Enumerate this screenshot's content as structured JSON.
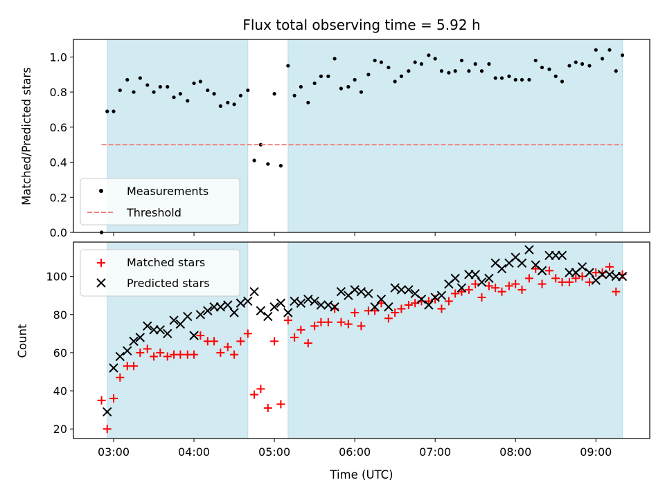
{
  "chart_data": {
    "title": "Flux total observing time = 5.92 h",
    "xlabel": "Time (UTC)",
    "x_ticks": [
      "03:00",
      "04:00",
      "05:00",
      "06:00",
      "07:00",
      "08:00",
      "09:00"
    ],
    "x_unit": "hours UTC",
    "x_range": [
      2.5,
      9.67
    ],
    "shaded_intervals": [
      [
        2.92,
        4.67
      ],
      [
        5.17,
        9.33
      ]
    ],
    "shade_color": "#add8e6",
    "panels": [
      {
        "type": "scatter",
        "ylabel": "Matched/Predicted stars",
        "ylim": [
          0,
          1.1
        ],
        "y_ticks": [
          "0.0",
          "0.2",
          "0.4",
          "0.6",
          "0.8",
          "1.0"
        ],
        "legend_position": "lower-left",
        "series": [
          {
            "name": "Measurements",
            "marker": "dot",
            "color": "#000000",
            "points": [
              [
                2.85,
                0.0
              ],
              [
                2.92,
                0.69
              ],
              [
                3.0,
                0.69
              ],
              [
                3.08,
                0.81
              ],
              [
                3.17,
                0.87
              ],
              [
                3.25,
                0.8
              ],
              [
                3.33,
                0.88
              ],
              [
                3.42,
                0.84
              ],
              [
                3.5,
                0.8
              ],
              [
                3.58,
                0.83
              ],
              [
                3.67,
                0.83
              ],
              [
                3.75,
                0.77
              ],
              [
                3.83,
                0.79
              ],
              [
                3.92,
                0.75
              ],
              [
                4.0,
                0.85
              ],
              [
                4.08,
                0.86
              ],
              [
                4.17,
                0.81
              ],
              [
                4.25,
                0.79
              ],
              [
                4.33,
                0.72
              ],
              [
                4.42,
                0.74
              ],
              [
                4.5,
                0.73
              ],
              [
                4.58,
                0.78
              ],
              [
                4.67,
                0.81
              ],
              [
                4.75,
                0.41
              ],
              [
                4.83,
                0.5
              ],
              [
                4.92,
                0.39
              ],
              [
                5.0,
                0.79
              ],
              [
                5.08,
                0.38
              ],
              [
                5.17,
                0.95
              ],
              [
                5.25,
                0.78
              ],
              [
                5.33,
                0.83
              ],
              [
                5.42,
                0.74
              ],
              [
                5.5,
                0.85
              ],
              [
                5.58,
                0.89
              ],
              [
                5.67,
                0.89
              ],
              [
                5.75,
                0.99
              ],
              [
                5.83,
                0.82
              ],
              [
                5.92,
                0.83
              ],
              [
                6.0,
                0.87
              ],
              [
                6.08,
                0.8
              ],
              [
                6.17,
                0.9
              ],
              [
                6.25,
                0.98
              ],
              [
                6.33,
                0.97
              ],
              [
                6.42,
                0.94
              ],
              [
                6.5,
                0.86
              ],
              [
                6.58,
                0.89
              ],
              [
                6.67,
                0.92
              ],
              [
                6.75,
                0.97
              ],
              [
                6.83,
                0.96
              ],
              [
                6.92,
                1.01
              ],
              [
                7.0,
                0.99
              ],
              [
                7.08,
                0.92
              ],
              [
                7.17,
                0.91
              ],
              [
                7.25,
                0.92
              ],
              [
                7.33,
                0.98
              ],
              [
                7.42,
                0.92
              ],
              [
                7.5,
                0.96
              ],
              [
                7.58,
                0.92
              ],
              [
                7.67,
                0.96
              ],
              [
                7.75,
                0.88
              ],
              [
                7.83,
                0.88
              ],
              [
                7.92,
                0.89
              ],
              [
                8.0,
                0.87
              ],
              [
                8.08,
                0.87
              ],
              [
                8.17,
                0.87
              ],
              [
                8.25,
                0.98
              ],
              [
                8.33,
                0.94
              ],
              [
                8.42,
                0.93
              ],
              [
                8.5,
                0.89
              ],
              [
                8.58,
                0.86
              ],
              [
                8.67,
                0.95
              ],
              [
                8.75,
                0.97
              ],
              [
                8.83,
                0.96
              ],
              [
                8.92,
                0.95
              ],
              [
                9.0,
                1.04
              ],
              [
                9.08,
                0.99
              ],
              [
                9.17,
                1.04
              ],
              [
                9.25,
                0.92
              ],
              [
                9.33,
                1.01
              ]
            ]
          },
          {
            "name": "Threshold",
            "marker": "dashed-line",
            "color": "#f08080",
            "x_range": [
              2.85,
              9.33
            ],
            "y": 0.5
          }
        ]
      },
      {
        "type": "scatter",
        "ylabel": "Count",
        "ylim": [
          15,
          118
        ],
        "y_ticks": [
          "20",
          "40",
          "60",
          "80",
          "100"
        ],
        "legend_position": "upper-left",
        "series": [
          {
            "name": "Matched stars",
            "marker": "plus",
            "color": "#ff0000",
            "points": [
              [
                2.85,
                35
              ],
              [
                2.92,
                20
              ],
              [
                3.0,
                36
              ],
              [
                3.08,
                47
              ],
              [
                3.17,
                53
              ],
              [
                3.25,
                53
              ],
              [
                3.33,
                60
              ],
              [
                3.42,
                62
              ],
              [
                3.5,
                58
              ],
              [
                3.58,
                60
              ],
              [
                3.67,
                58
              ],
              [
                3.75,
                59
              ],
              [
                3.83,
                59
              ],
              [
                3.92,
                59
              ],
              [
                4.0,
                59
              ],
              [
                4.08,
                69
              ],
              [
                4.17,
                66
              ],
              [
                4.25,
                66
              ],
              [
                4.33,
                60
              ],
              [
                4.42,
                63
              ],
              [
                4.5,
                59
              ],
              [
                4.58,
                66
              ],
              [
                4.67,
                70
              ],
              [
                4.75,
                38
              ],
              [
                4.83,
                41
              ],
              [
                4.92,
                31
              ],
              [
                5.0,
                66
              ],
              [
                5.08,
                33
              ],
              [
                5.17,
                77
              ],
              [
                5.25,
                68
              ],
              [
                5.33,
                72
              ],
              [
                5.42,
                65
              ],
              [
                5.5,
                74
              ],
              [
                5.58,
                76
              ],
              [
                5.67,
                76
              ],
              [
                5.75,
                83
              ],
              [
                5.83,
                76
              ],
              [
                5.92,
                75
              ],
              [
                6.0,
                81
              ],
              [
                6.08,
                74
              ],
              [
                6.17,
                82
              ],
              [
                6.25,
                82
              ],
              [
                6.33,
                86
              ],
              [
                6.42,
                78
              ],
              [
                6.5,
                81
              ],
              [
                6.58,
                83
              ],
              [
                6.67,
                85
              ],
              [
                6.75,
                86
              ],
              [
                6.83,
                87
              ],
              [
                6.92,
                87
              ],
              [
                7.0,
                88
              ],
              [
                7.08,
                83
              ],
              [
                7.17,
                87
              ],
              [
                7.25,
                91
              ],
              [
                7.33,
                92
              ],
              [
                7.42,
                93
              ],
              [
                7.5,
                96
              ],
              [
                7.58,
                89
              ],
              [
                7.67,
                95
              ],
              [
                7.75,
                94
              ],
              [
                7.83,
                92
              ],
              [
                7.92,
                95
              ],
              [
                8.0,
                96
              ],
              [
                8.08,
                93
              ],
              [
                8.17,
                99
              ],
              [
                8.25,
                104
              ],
              [
                8.33,
                96
              ],
              [
                8.42,
                103
              ],
              [
                8.5,
                99
              ],
              [
                8.58,
                97
              ],
              [
                8.67,
                97
              ],
              [
                8.75,
                99
              ],
              [
                8.83,
                100
              ],
              [
                8.92,
                97
              ],
              [
                9.0,
                102
              ],
              [
                9.08,
                102
              ],
              [
                9.17,
                105
              ],
              [
                9.25,
                92
              ],
              [
                9.33,
                101
              ]
            ]
          },
          {
            "name": "Predicted stars",
            "marker": "x",
            "color": "#000000",
            "points": [
              [
                2.92,
                29
              ],
              [
                3.0,
                52
              ],
              [
                3.08,
                58
              ],
              [
                3.17,
                61
              ],
              [
                3.25,
                66
              ],
              [
                3.33,
                68
              ],
              [
                3.42,
                74
              ],
              [
                3.5,
                72
              ],
              [
                3.58,
                72
              ],
              [
                3.67,
                70
              ],
              [
                3.75,
                77
              ],
              [
                3.83,
                75
              ],
              [
                3.92,
                79
              ],
              [
                4.0,
                69
              ],
              [
                4.08,
                80
              ],
              [
                4.17,
                82
              ],
              [
                4.25,
                84
              ],
              [
                4.33,
                84
              ],
              [
                4.42,
                85
              ],
              [
                4.5,
                81
              ],
              [
                4.58,
                86
              ],
              [
                4.67,
                87
              ],
              [
                4.75,
                92
              ],
              [
                4.83,
                82
              ],
              [
                4.92,
                79
              ],
              [
                5.0,
                84
              ],
              [
                5.08,
                86
              ],
              [
                5.17,
                81
              ],
              [
                5.25,
                87
              ],
              [
                5.33,
                86
              ],
              [
                5.42,
                88
              ],
              [
                5.5,
                87
              ],
              [
                5.58,
                85
              ],
              [
                5.67,
                85
              ],
              [
                5.75,
                84
              ],
              [
                5.83,
                92
              ],
              [
                5.92,
                90
              ],
              [
                6.0,
                93
              ],
              [
                6.08,
                92
              ],
              [
                6.17,
                91
              ],
              [
                6.25,
                84
              ],
              [
                6.33,
                88
              ],
              [
                6.42,
                84
              ],
              [
                6.5,
                94
              ],
              [
                6.58,
                93
              ],
              [
                6.67,
                93
              ],
              [
                6.75,
                91
              ],
              [
                6.83,
                88
              ],
              [
                6.92,
                85
              ],
              [
                7.0,
                89
              ],
              [
                7.08,
                90
              ],
              [
                7.17,
                96
              ],
              [
                7.25,
                99
              ],
              [
                7.33,
                94
              ],
              [
                7.42,
                101
              ],
              [
                7.5,
                101
              ],
              [
                7.58,
                97
              ],
              [
                7.67,
                99
              ],
              [
                7.75,
                107
              ],
              [
                7.83,
                104
              ],
              [
                7.92,
                107
              ],
              [
                8.0,
                110
              ],
              [
                8.08,
                107
              ],
              [
                8.17,
                114
              ],
              [
                8.25,
                106
              ],
              [
                8.33,
                103
              ],
              [
                8.42,
                111
              ],
              [
                8.5,
                111
              ],
              [
                8.58,
                111
              ],
              [
                8.67,
                102
              ],
              [
                8.75,
                102
              ],
              [
                8.83,
                105
              ],
              [
                8.92,
                102
              ],
              [
                9.0,
                98
              ],
              [
                9.08,
                101
              ],
              [
                9.17,
                101
              ],
              [
                9.25,
                100
              ],
              [
                9.33,
                100
              ]
            ]
          }
        ]
      }
    ]
  }
}
